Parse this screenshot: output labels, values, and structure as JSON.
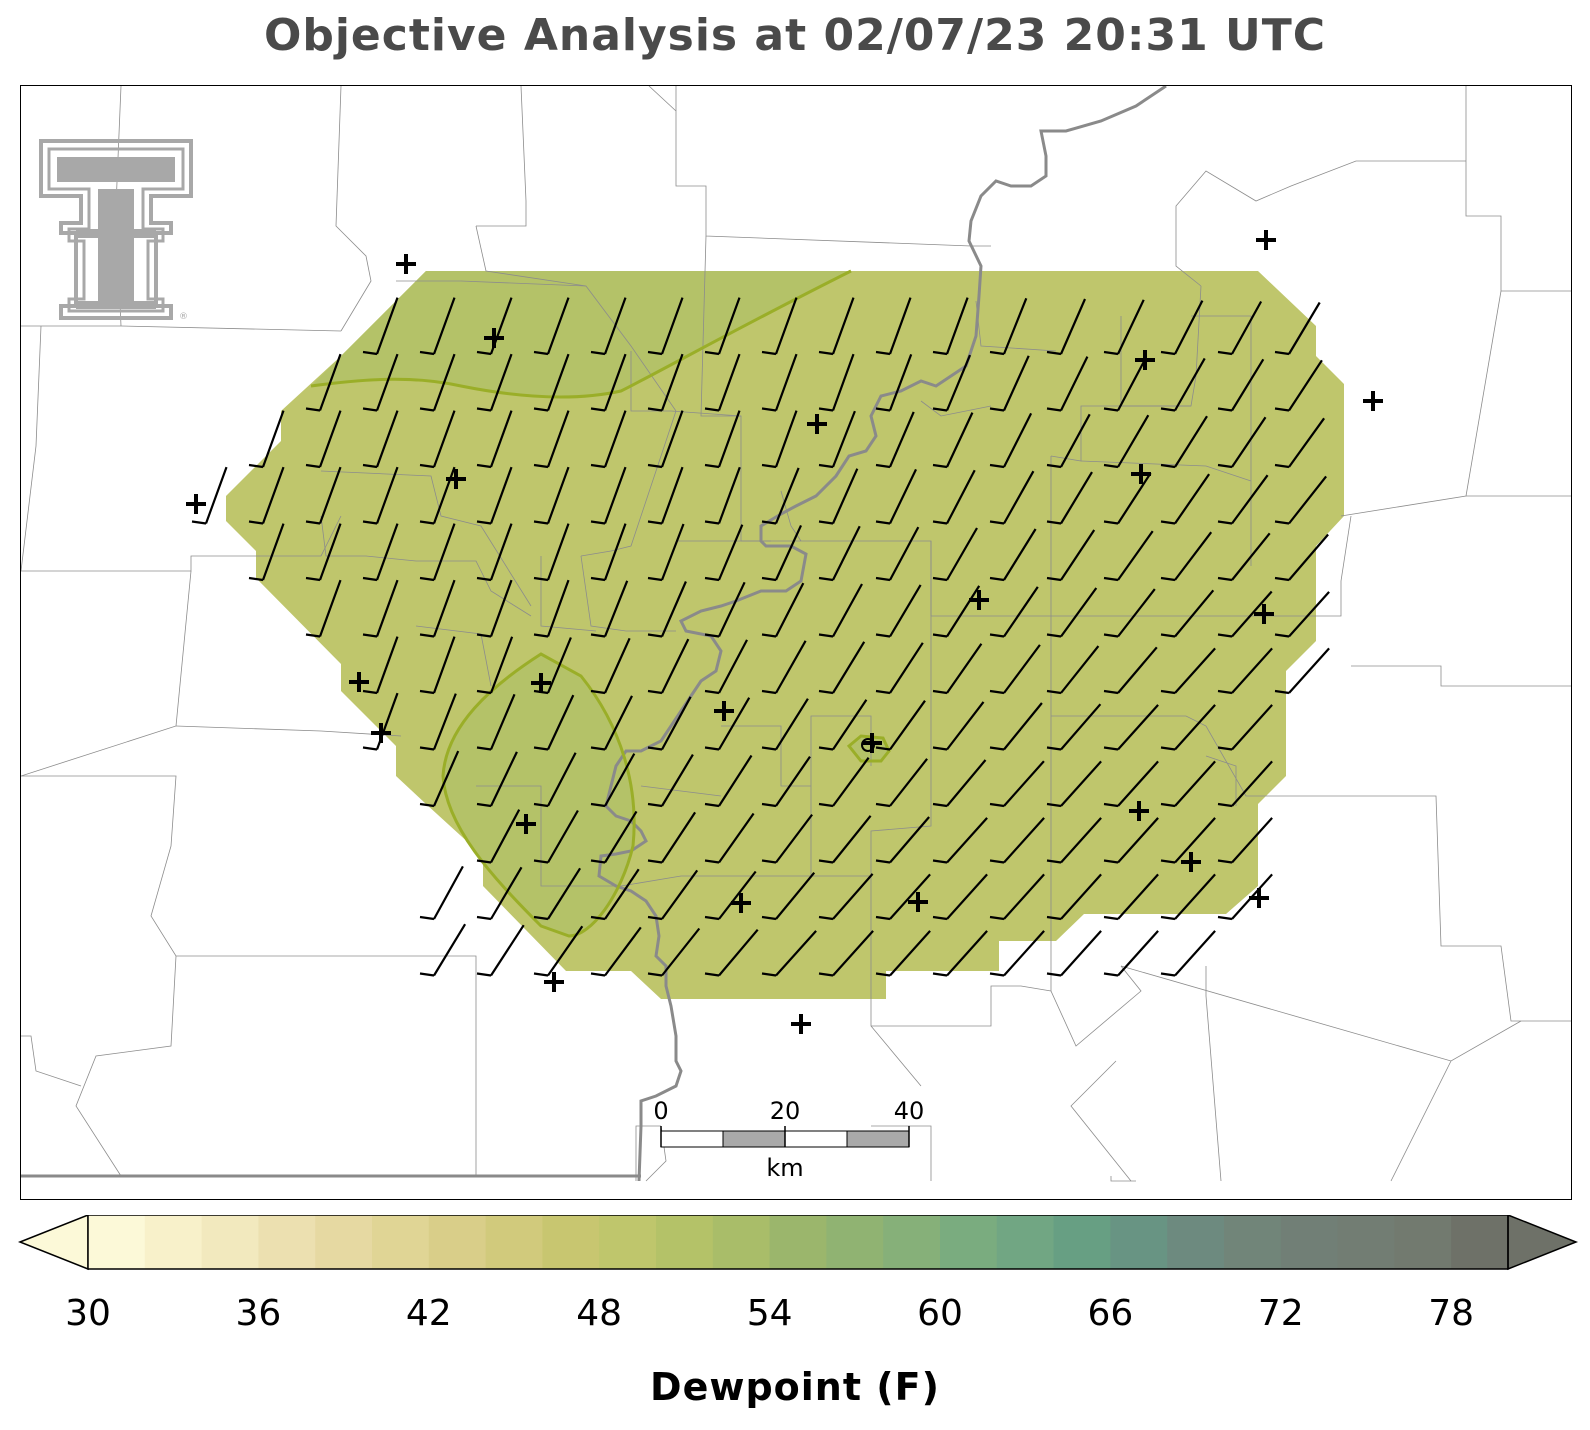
{
  "title": "Objective Analysis at 02/07/23 20:31 UTC",
  "colorbar": {
    "label": "Dewpoint (F)",
    "tick_labels": [
      "30",
      "36",
      "42",
      "48",
      "54",
      "60",
      "66",
      "72",
      "78"
    ],
    "min": 30,
    "max": 80,
    "step": 2,
    "extend": "both",
    "colors": [
      "#fcf9d8",
      "#f8f1ca",
      "#f2e9be",
      "#ece0b0",
      "#e6d9a2",
      "#e0d595",
      "#d9ce89",
      "#d1ca7c",
      "#c8c670",
      "#bfc66c",
      "#b4c268",
      "#a9bd69",
      "#9bb66c",
      "#90b372",
      "#86b079",
      "#7aac7f",
      "#71a683",
      "#679f83",
      "#689483",
      "#6d8a7f",
      "#718579",
      "#717f76",
      "#727d73",
      "#727a6f",
      "#6e7168"
    ],
    "over_color": "#6e7168",
    "under_color": "#fcf9d8"
  },
  "analysis": {
    "field": "dewpoint",
    "dominant_fill": "#bfc66c",
    "higher_fill": "#b4c268",
    "contour_color": "#9aae28"
  },
  "stations": {
    "marker": "plus",
    "count": 28,
    "special_marker": "circle"
  },
  "wind_barbs": {
    "dominant_direction": "south-southwest",
    "barb_style": "single short barb"
  },
  "scalebar": {
    "labels": [
      "0",
      "20",
      "40"
    ],
    "unit": "km"
  },
  "logo": {
    "name": "texas-tech-double-t-logo",
    "color": "#a8a8a8"
  }
}
